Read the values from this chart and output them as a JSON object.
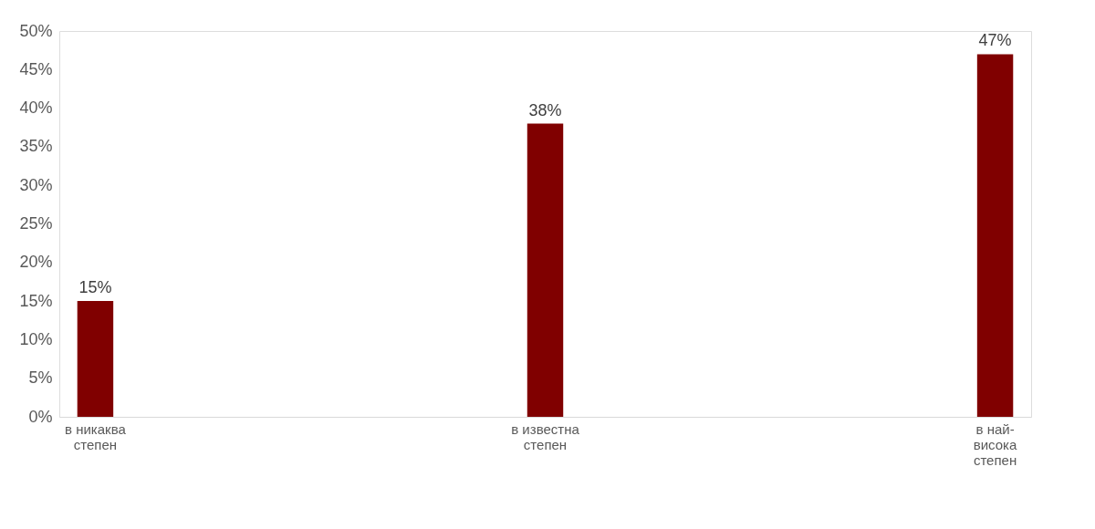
{
  "chart_data": {
    "type": "bar",
    "categories": [
      "в никаква степен",
      "в известна степен",
      "в най-висока степен"
    ],
    "values": [
      15,
      38,
      47
    ],
    "color": "#800000",
    "value_labels": [
      "15%",
      "38%",
      "47%"
    ],
    "ylim": [
      0,
      50
    ],
    "yticks": [
      {
        "value": 0,
        "label": "0%"
      },
      {
        "value": 5,
        "label": "5%"
      },
      {
        "value": 10,
        "label": "10%"
      },
      {
        "value": 15,
        "label": "15%"
      },
      {
        "value": 20,
        "label": "20%"
      },
      {
        "value": 25,
        "label": "25%"
      },
      {
        "value": 30,
        "label": "30%"
      },
      {
        "value": 35,
        "label": "35%"
      },
      {
        "value": 40,
        "label": "40%"
      },
      {
        "value": 45,
        "label": "45%"
      },
      {
        "value": 50,
        "label": "50%"
      }
    ],
    "grid": false
  }
}
